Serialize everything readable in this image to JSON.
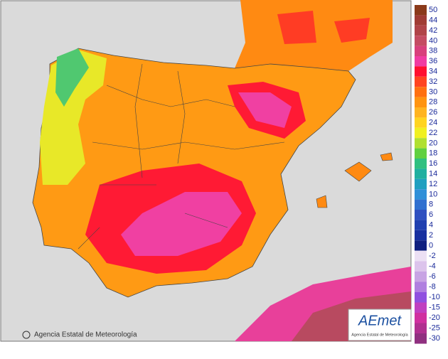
{
  "credit": "Agencia Estatal de Meteorología",
  "logo": {
    "name": "AEmet",
    "subtitle": "Agencia Estatal de Meteorología"
  },
  "legend": {
    "upper": [
      {
        "label": 50,
        "color": "#8b3a1a"
      },
      {
        "label": 44,
        "color": "#a03c34"
      },
      {
        "label": 42,
        "color": "#b04448"
      },
      {
        "label": 40,
        "color": "#c44c62"
      },
      {
        "label": 38,
        "color": "#d8407c"
      },
      {
        "label": 36,
        "color": "#f03ca2"
      },
      {
        "label": 34,
        "color": "#ff1030"
      },
      {
        "label": 32,
        "color": "#ff4420"
      },
      {
        "label": 30,
        "color": "#ff7010"
      },
      {
        "label": 28,
        "color": "#ff9410"
      },
      {
        "label": 26,
        "color": "#ffb420"
      },
      {
        "label": 24,
        "color": "#ffd420"
      },
      {
        "label": 22,
        "color": "#f0f020"
      },
      {
        "label": 20,
        "color": "#b0e030"
      },
      {
        "label": 18,
        "color": "#60d040"
      },
      {
        "label": 16,
        "color": "#30c080"
      },
      {
        "label": 14,
        "color": "#20b0a0"
      },
      {
        "label": 12,
        "color": "#20a0c0"
      },
      {
        "label": 10,
        "color": "#3090d8"
      },
      {
        "label": 8,
        "color": "#3070d0"
      },
      {
        "label": 6,
        "color": "#3050c0"
      },
      {
        "label": 4,
        "color": "#2040b0"
      },
      {
        "label": 2,
        "color": "#1830a0"
      },
      {
        "label": 0,
        "color": "#102080"
      }
    ],
    "lower": [
      {
        "label": -2,
        "color": "#ece0f4"
      },
      {
        "label": -4,
        "color": "#dcc4ec"
      },
      {
        "label": -6,
        "color": "#c8a4e4"
      },
      {
        "label": -8,
        "color": "#b080e0"
      },
      {
        "label": -10,
        "color": "#9050e0"
      },
      {
        "label": -15,
        "color": "#c040c0"
      },
      {
        "label": -20,
        "color": "#d030a0"
      },
      {
        "label": -25,
        "color": "#b03090"
      },
      {
        "label": -30,
        "color": "#903080"
      }
    ]
  }
}
